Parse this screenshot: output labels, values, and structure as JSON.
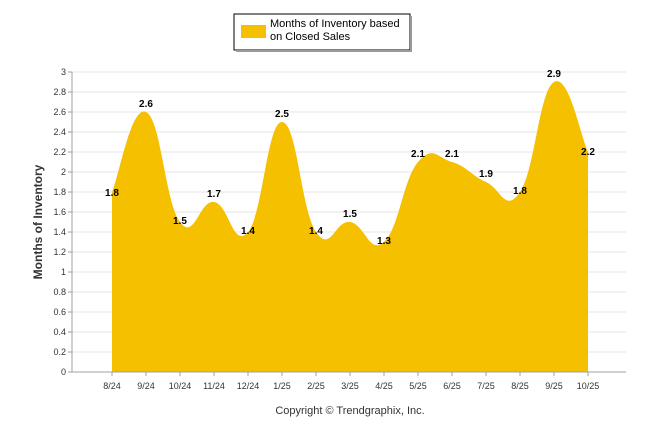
{
  "chart_data": {
    "type": "area",
    "title": "",
    "xlabel": "",
    "ylabel": "Months of Inventory",
    "categories": [
      "8/24",
      "9/24",
      "10/24",
      "11/24",
      "12/24",
      "1/25",
      "2/25",
      "3/25",
      "4/25",
      "5/25",
      "6/25",
      "7/25",
      "8/25",
      "9/25",
      "10/25"
    ],
    "series": [
      {
        "name": "Months of Inventory based on Closed Sales",
        "values": [
          1.8,
          2.6,
          1.5,
          1.7,
          1.4,
          2.5,
          1.4,
          1.5,
          1.3,
          2.1,
          2.1,
          1.9,
          1.8,
          2.9,
          2.2
        ],
        "color": "#F5C000"
      }
    ],
    "ylim": [
      0,
      3
    ],
    "yticks": [
      "0",
      "0.2",
      "0.4",
      "0.6",
      "0.8",
      "1",
      "1.2",
      "1.4",
      "1.6",
      "1.8",
      "2",
      "2.2",
      "2.4",
      "2.6",
      "2.8",
      "3"
    ],
    "grid": true,
    "legend_position": "top-center",
    "legend_line1": "Months of Inventory based",
    "legend_line2": "on Closed Sales"
  },
  "footer": {
    "copyright": "Copyright © Trendgraphix, Inc."
  },
  "colors": {
    "area": "#F5C000",
    "grid": "#E6E6E6",
    "axis": "#A0A0A0"
  }
}
